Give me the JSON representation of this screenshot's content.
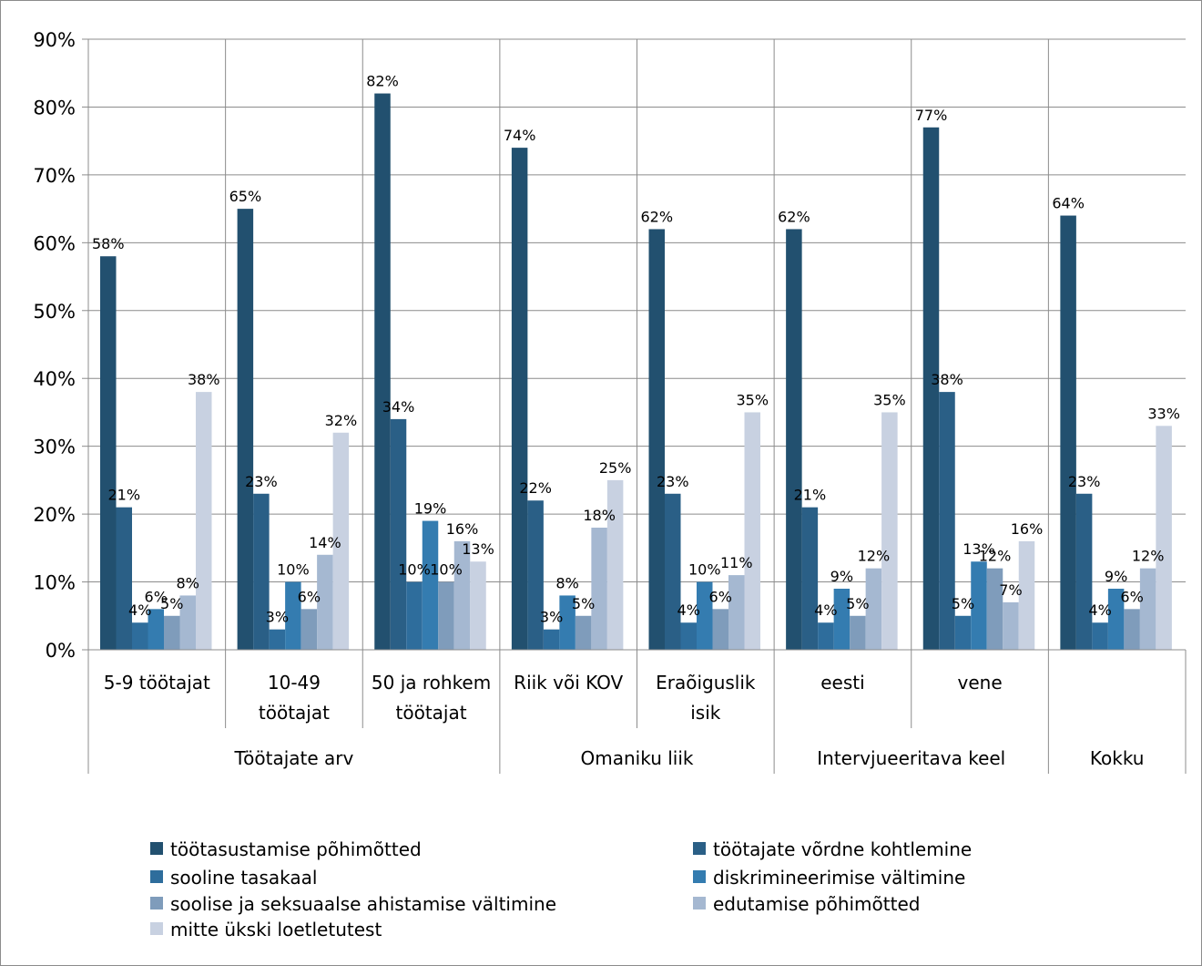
{
  "chart_data": {
    "type": "bar",
    "title": "",
    "xlabel": "",
    "ylabel": "",
    "ylim": [
      0,
      0.9
    ],
    "yticks": [
      "0%",
      "10%",
      "20%",
      "30%",
      "40%",
      "50%",
      "60%",
      "70%",
      "80%",
      "90%"
    ],
    "grid": true,
    "legend_position": "bottom",
    "categories": [
      "5-9 töötajat",
      "10-49 töötajat",
      "50 ja rohkem töötajat",
      "Riik või KOV",
      "Eraõiguslik isik",
      "eesti",
      "vene",
      ""
    ],
    "category_lines": [
      [
        "5-9 töötajat"
      ],
      [
        "10-49",
        "töötajat"
      ],
      [
        "50 ja rohkem",
        "töötajat"
      ],
      [
        "Riik või KOV"
      ],
      [
        "Eraõiguslik",
        "isik"
      ],
      [
        "eesti"
      ],
      [
        "vene"
      ],
      []
    ],
    "groups": [
      {
        "label": "Töötajate arv",
        "count": 3
      },
      {
        "label": "Omaniku liik",
        "count": 2
      },
      {
        "label": "Intervjueeritava keel",
        "count": 2
      },
      {
        "label": "Kokku",
        "count": 1
      }
    ],
    "series": [
      {
        "name": "töötasustamise põhimõtted",
        "color": "#22506f",
        "values": [
          0.58,
          0.65,
          0.82,
          0.74,
          0.62,
          0.62,
          0.77,
          0.64
        ],
        "labels": [
          "58%",
          "65%",
          "82%",
          "74%",
          "62%",
          "62%",
          "77%",
          "64%"
        ]
      },
      {
        "name": "töötajate võrdne kohtlemine",
        "color": "#2a5f86",
        "values": [
          0.21,
          0.23,
          0.34,
          0.22,
          0.23,
          0.21,
          0.38,
          0.23
        ],
        "labels": [
          "21%",
          "23%",
          "34%",
          "22%",
          "23%",
          "21%",
          "38%",
          "23%"
        ]
      },
      {
        "name": "sooline tasakaal",
        "color": "#2e6d9c",
        "values": [
          0.04,
          0.03,
          0.1,
          0.03,
          0.04,
          0.04,
          0.05,
          0.04
        ],
        "labels": [
          "4%",
          "3%",
          "10%",
          "3%",
          "4%",
          "4%",
          "5%",
          "4%"
        ]
      },
      {
        "name": "diskrimineerimise vältimine",
        "color": "#347cb0",
        "values": [
          0.06,
          0.1,
          0.19,
          0.08,
          0.1,
          0.09,
          0.13,
          0.09
        ],
        "labels": [
          "6%",
          "10%",
          "19%",
          "8%",
          "10%",
          "9%",
          "13%",
          "9%"
        ]
      },
      {
        "name": "soolise ja seksuaalse ahistamise vältimine",
        "color": "#7f9cbb",
        "values": [
          0.05,
          0.06,
          0.1,
          0.05,
          0.06,
          0.05,
          0.12,
          0.06
        ],
        "labels": [
          "5%",
          "6%",
          "10%",
          "5%",
          "6%",
          "5%",
          "12%",
          "6%"
        ]
      },
      {
        "name": "edutamise põhimõtted",
        "color": "#a5b8d1",
        "values": [
          0.08,
          0.14,
          0.16,
          0.18,
          0.11,
          0.12,
          0.07,
          0.12
        ],
        "labels": [
          "8%",
          "14%",
          "16%",
          "18%",
          "11%",
          "12%",
          "7%",
          "12%"
        ]
      },
      {
        "name": "mitte ükski loetletutest",
        "color": "#c8d1e1",
        "values": [
          0.38,
          0.32,
          0.13,
          0.25,
          0.35,
          0.35,
          0.16,
          0.33
        ],
        "labels": [
          "38%",
          "32%",
          "13%",
          "25%",
          "35%",
          "35%",
          "16%",
          "33%"
        ]
      }
    ],
    "colors": {
      "grid": "#8c8c8c",
      "axis": "#8c8c8c",
      "border": "#8c8c8c"
    }
  }
}
